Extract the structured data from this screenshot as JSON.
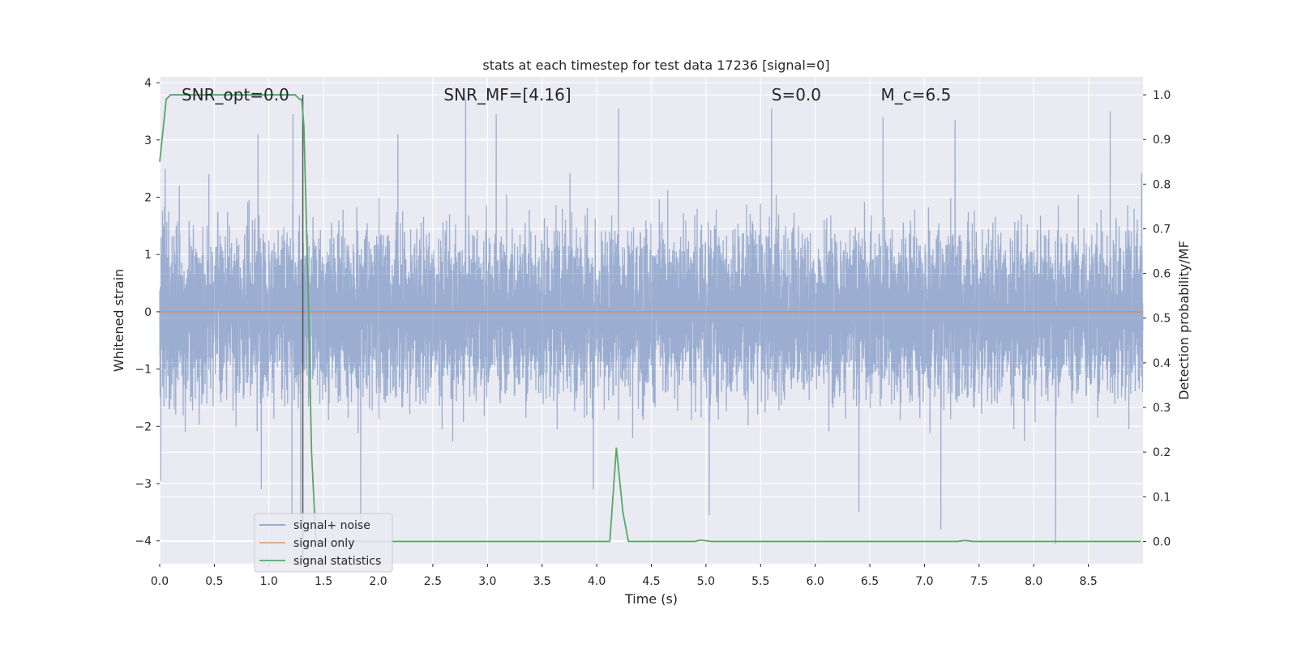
{
  "chart_data": {
    "type": "line",
    "title": "stats at each timestep for test data 17236 [signal=0]",
    "xlabel": "Time (s)",
    "ylabel": "Whitened strain",
    "y2label": "Detection probability/MF",
    "xlim": [
      0.0,
      9.0
    ],
    "ylim": [
      -4.4,
      4.1
    ],
    "y2lim": [
      -0.05,
      1.04
    ],
    "xticks": [
      0.0,
      0.5,
      1.0,
      1.5,
      2.0,
      2.5,
      3.0,
      3.5,
      4.0,
      4.5,
      5.0,
      5.5,
      6.0,
      6.5,
      7.0,
      7.5,
      8.0,
      8.5
    ],
    "yticks": [
      -4,
      -3,
      -2,
      -1,
      0,
      1,
      2,
      3,
      4
    ],
    "y2ticks": [
      0.0,
      0.1,
      0.2,
      0.3,
      0.4,
      0.5,
      0.6,
      0.7,
      0.8,
      0.9,
      1.0
    ],
    "grid": true,
    "legend_position": "lower-left",
    "colors": {
      "noise": "#4c72b0",
      "signal": "#dd8452",
      "stats": "#55a868",
      "marker": "#555555",
      "plot_bg": "#eaeaf2"
    },
    "annotations": [
      {
        "label": "SNR_opt=0.0",
        "x": 0.2
      },
      {
        "label": "SNR_MF=[4.16]",
        "x": 2.6
      },
      {
        "label": "S=0.0",
        "x": 5.6
      },
      {
        "label": "M_c=6.5",
        "x": 6.6
      }
    ],
    "marker_line_x": 1.31,
    "series": [
      {
        "name": "signal+ noise",
        "axis": "left",
        "sample_rate": 1000,
        "duration": 9.0,
        "envelope_peaks": [
          {
            "x": 0.01,
            "y": -2.95
          },
          {
            "x": 0.05,
            "y": 2.5
          },
          {
            "x": 0.18,
            "y": 2.2
          },
          {
            "x": 0.45,
            "y": 2.4
          },
          {
            "x": 0.9,
            "y": 3.1
          },
          {
            "x": 0.93,
            "y": -3.1
          },
          {
            "x": 1.22,
            "y": 3.45
          },
          {
            "x": 1.21,
            "y": -3.55
          },
          {
            "x": 1.29,
            "y": -3.8
          },
          {
            "x": 1.84,
            "y": -3.65
          },
          {
            "x": 2.18,
            "y": 3.1
          },
          {
            "x": 2.8,
            "y": 3.72
          },
          {
            "x": 3.08,
            "y": 3.45
          },
          {
            "x": 3.97,
            "y": -3.1
          },
          {
            "x": 4.2,
            "y": 3.55
          },
          {
            "x": 5.03,
            "y": -3.55
          },
          {
            "x": 5.6,
            "y": 3.55
          },
          {
            "x": 6.4,
            "y": -3.5
          },
          {
            "x": 6.62,
            "y": 3.4
          },
          {
            "x": 7.15,
            "y": -3.8
          },
          {
            "x": 7.28,
            "y": 3.35
          },
          {
            "x": 8.2,
            "y": -4.05
          },
          {
            "x": 8.7,
            "y": 3.5
          }
        ]
      },
      {
        "name": "signal only",
        "axis": "left",
        "x": [
          0.0,
          9.0
        ],
        "y": [
          0.0,
          0.0
        ]
      },
      {
        "name": "signal statistics",
        "axis": "right",
        "x": [
          0.0,
          0.06,
          0.1,
          0.2,
          1.24,
          1.28,
          1.3,
          1.32,
          1.36,
          1.39,
          1.43,
          1.5,
          2.0,
          3.0,
          4.0,
          4.12,
          4.18,
          4.24,
          4.29,
          4.5,
          4.9,
          4.95,
          5.05,
          6.0,
          7.3,
          7.37,
          7.45,
          8.0,
          8.98
        ],
        "y": [
          0.85,
          0.99,
          1.0,
          1.0,
          1.0,
          0.99,
          0.99,
          0.93,
          0.55,
          0.2,
          0.0,
          0.0,
          0.0,
          0.0,
          0.0,
          0.0,
          0.21,
          0.065,
          0.0,
          0.0,
          0.0,
          0.003,
          0.0,
          0.0,
          0.0,
          0.002,
          0.0,
          0.0,
          0.0
        ]
      }
    ]
  }
}
